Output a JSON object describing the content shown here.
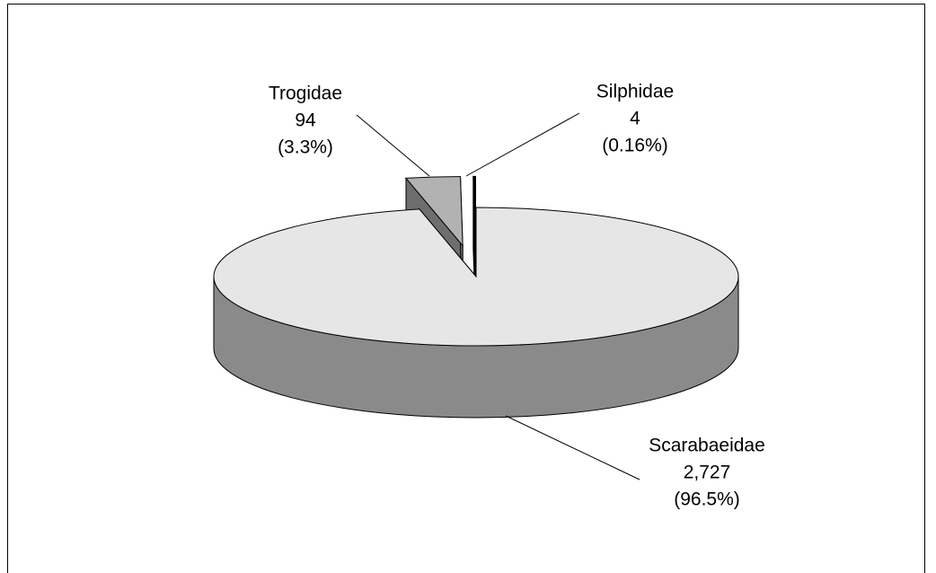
{
  "chart_data": {
    "type": "pie",
    "categories": [
      "Scarabaeidae",
      "Trogidae",
      "Silphidae"
    ],
    "values": [
      2727,
      94,
      4
    ],
    "value_labels": [
      "2,727",
      "94",
      "4"
    ],
    "percents": [
      96.5,
      3.3,
      0.16
    ],
    "percent_labels": [
      "(96.5%)",
      "(3.3%)",
      "(0.16%)"
    ],
    "colors": [
      "#e6e6e6",
      "#b2b2b2",
      "#000000"
    ],
    "side_colors": [
      "#8a8a8a",
      "#6e6e6e",
      "#000000"
    ],
    "explode": [
      0,
      0.45,
      0.45
    ]
  }
}
